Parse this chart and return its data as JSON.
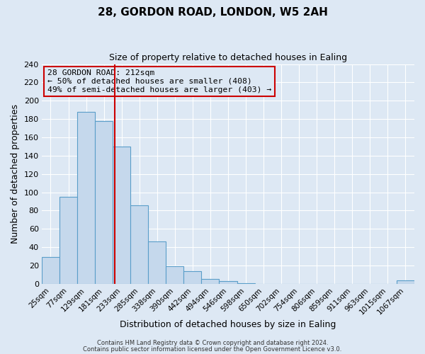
{
  "title": "28, GORDON ROAD, LONDON, W5 2AH",
  "subtitle": "Size of property relative to detached houses in Ealing",
  "xlabel": "Distribution of detached houses by size in Ealing",
  "ylabel": "Number of detached properties",
  "bar_labels": [
    "25sqm",
    "77sqm",
    "129sqm",
    "181sqm",
    "233sqm",
    "285sqm",
    "338sqm",
    "390sqm",
    "442sqm",
    "494sqm",
    "546sqm",
    "598sqm",
    "650sqm",
    "702sqm",
    "754sqm",
    "806sqm",
    "859sqm",
    "911sqm",
    "963sqm",
    "1015sqm",
    "1067sqm"
  ],
  "bar_heights": [
    29,
    95,
    188,
    178,
    150,
    86,
    46,
    19,
    14,
    5,
    3,
    1,
    0,
    0,
    0,
    0,
    0,
    0,
    0,
    0,
    4
  ],
  "bar_color": "#c5d8ec",
  "bar_edge_color": "#5a9ec9",
  "ylim": [
    0,
    240
  ],
  "yticks": [
    0,
    20,
    40,
    60,
    80,
    100,
    120,
    140,
    160,
    180,
    200,
    220,
    240
  ],
  "vline_color": "#cc0000",
  "vline_pos": 3.596,
  "annotation_title": "28 GORDON ROAD: 212sqm",
  "annotation_line1": "← 50% of detached houses are smaller (408)",
  "annotation_line2": "49% of semi-detached houses are larger (403) →",
  "annotation_box_color": "#cc0000",
  "footer1": "Contains HM Land Registry data © Crown copyright and database right 2024.",
  "footer2": "Contains public sector information licensed under the Open Government Licence v3.0.",
  "background_color": "#dde8f4",
  "plot_bg_color": "#dde8f4",
  "grid_color": "#ffffff"
}
